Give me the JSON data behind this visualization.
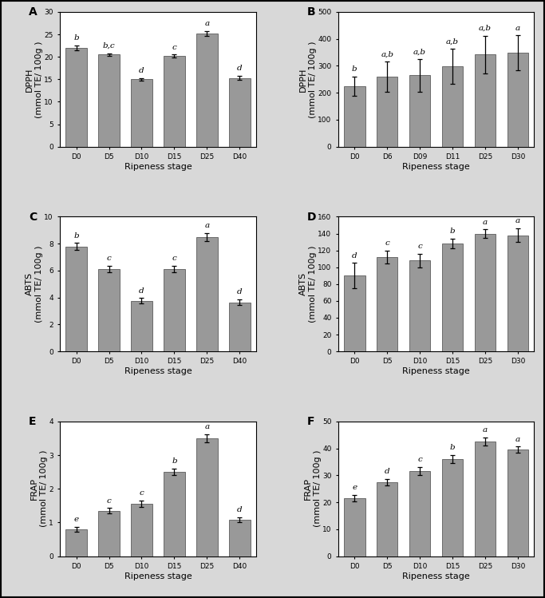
{
  "panels": [
    {
      "label": "A",
      "ylabel": "DPPH\n(mmol TE/ 100g )",
      "categories": [
        "D0",
        "D5",
        "D10",
        "D15",
        "D25",
        "D40"
      ],
      "values": [
        22.0,
        20.5,
        15.0,
        20.2,
        25.2,
        15.3
      ],
      "errors": [
        0.5,
        0.3,
        0.3,
        0.3,
        0.5,
        0.5
      ],
      "sig_labels": [
        "b",
        "b,c",
        "d",
        "c",
        "a",
        "d"
      ],
      "ylim": [
        0,
        30
      ],
      "yticks": [
        0,
        5,
        10,
        15,
        20,
        25,
        30
      ]
    },
    {
      "label": "B",
      "ylabel": "DPPH\n(mmol TE/ 100g )",
      "categories": [
        "D0",
        "D6",
        "D09",
        "D11",
        "D25",
        "D30"
      ],
      "values": [
        225,
        260,
        265,
        298,
        342,
        348
      ],
      "errors": [
        35,
        55,
        60,
        65,
        70,
        65
      ],
      "sig_labels": [
        "b",
        "a,b",
        "a,b",
        "a,b",
        "a,b",
        "a"
      ],
      "ylim": [
        0,
        500
      ],
      "yticks": [
        0,
        100,
        200,
        300,
        400,
        500
      ]
    },
    {
      "label": "C",
      "ylabel": "ABTS\n(mmol TE/ 100g )",
      "categories": [
        "D0",
        "D5",
        "D10",
        "D15",
        "D25",
        "D40"
      ],
      "values": [
        7.8,
        6.1,
        3.75,
        6.1,
        8.5,
        3.65
      ],
      "errors": [
        0.25,
        0.25,
        0.2,
        0.25,
        0.3,
        0.2
      ],
      "sig_labels": [
        "b",
        "c",
        "d",
        "c",
        "a",
        "d"
      ],
      "ylim": [
        0,
        10
      ],
      "yticks": [
        0,
        2,
        4,
        6,
        8,
        10
      ]
    },
    {
      "label": "D",
      "ylabel": "ABTS\n(mmol TE/ 100g )",
      "categories": [
        "D0",
        "D5",
        "D10",
        "D15",
        "D25",
        "D30"
      ],
      "values": [
        90,
        112,
        108,
        128,
        140,
        138
      ],
      "errors": [
        15,
        8,
        8,
        6,
        5,
        8
      ],
      "sig_labels": [
        "d",
        "c",
        "c",
        "b",
        "a",
        "a"
      ],
      "ylim": [
        0,
        160
      ],
      "yticks": [
        0,
        20,
        40,
        60,
        80,
        100,
        120,
        140,
        160
      ]
    },
    {
      "label": "E",
      "ylabel": "FRAP\n(mmol TE/ 100g )",
      "categories": [
        "D0",
        "D5",
        "D10",
        "D15",
        "D25",
        "D40"
      ],
      "values": [
        0.8,
        1.35,
        1.55,
        2.5,
        3.5,
        1.08
      ],
      "errors": [
        0.07,
        0.08,
        0.1,
        0.1,
        0.12,
        0.07
      ],
      "sig_labels": [
        "e",
        "c",
        "c",
        "b",
        "a",
        "d"
      ],
      "ylim": [
        0,
        4
      ],
      "yticks": [
        0,
        1,
        2,
        3,
        4
      ]
    },
    {
      "label": "F",
      "ylabel": "FRAP\n(mmol TE/ 100g )",
      "categories": [
        "D0",
        "D5",
        "D10",
        "D15",
        "D25",
        "D30"
      ],
      "values": [
        21.5,
        27.5,
        31.5,
        36.0,
        42.5,
        39.5
      ],
      "errors": [
        1.2,
        1.2,
        1.5,
        1.5,
        1.5,
        1.2
      ],
      "sig_labels": [
        "e",
        "d",
        "c",
        "b",
        "a",
        "a"
      ],
      "ylim": [
        0,
        50
      ],
      "yticks": [
        0,
        10,
        20,
        30,
        40,
        50
      ]
    }
  ],
  "bar_color": "#999999",
  "bar_edge_color": "#444444",
  "error_color": "black",
  "fig_facecolor": "#d8d8d8",
  "ax_facecolor": "#ffffff",
  "xlabel": "Ripeness stage",
  "sig_fontsize": 7.5,
  "label_fontsize": 8,
  "tick_fontsize": 6.5,
  "panel_label_fontsize": 10
}
